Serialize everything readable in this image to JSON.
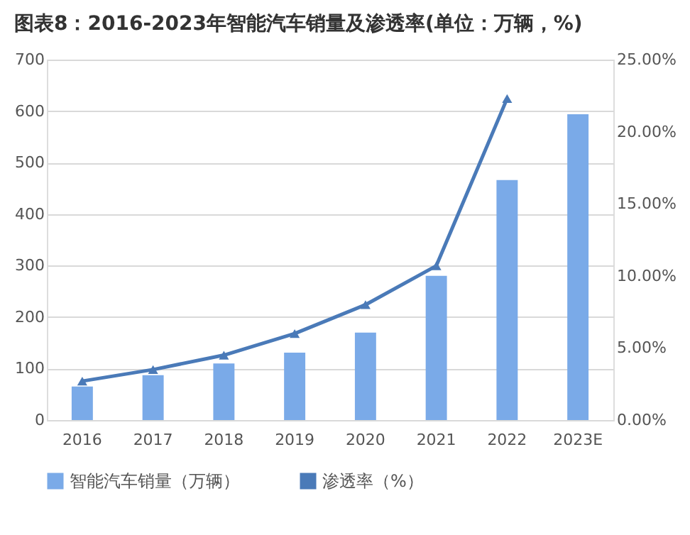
{
  "chart_data": {
    "type": "bar",
    "title": "图表8：2016-2023年智能汽车销量及渗透率(单位：万辆，%)",
    "categories": [
      "2016",
      "2017",
      "2018",
      "2019",
      "2020",
      "2021",
      "2022",
      "2023E"
    ],
    "series": [
      {
        "name": "智能汽车销量（万辆）",
        "color": "#7aaae8",
        "values": [
          65,
          87,
          110,
          131,
          170,
          280,
          466,
          594
        ]
      },
      {
        "name": "渗透率（%）",
        "type": "line",
        "axis": "y2",
        "color": "#4a7ab8",
        "marker": "triangle",
        "values": [
          2.7,
          3.5,
          4.5,
          6.0,
          8.0,
          10.7,
          22.3,
          null
        ]
      }
    ],
    "ylim": [
      0,
      700
    ],
    "yticks": [
      0,
      100,
      200,
      300,
      400,
      500,
      600,
      700
    ],
    "y2lim": [
      0,
      25
    ],
    "y2ticks": [
      {
        "value": 0,
        "label": "0.00%"
      },
      {
        "value": 5,
        "label": "5.00%"
      },
      {
        "value": 10,
        "label": "10.00%"
      },
      {
        "value": 15,
        "label": "15.00%"
      },
      {
        "value": 20,
        "label": "20.00%"
      },
      {
        "value": 25,
        "label": "25.00%"
      }
    ],
    "grid": "y",
    "legend": "bottom"
  }
}
